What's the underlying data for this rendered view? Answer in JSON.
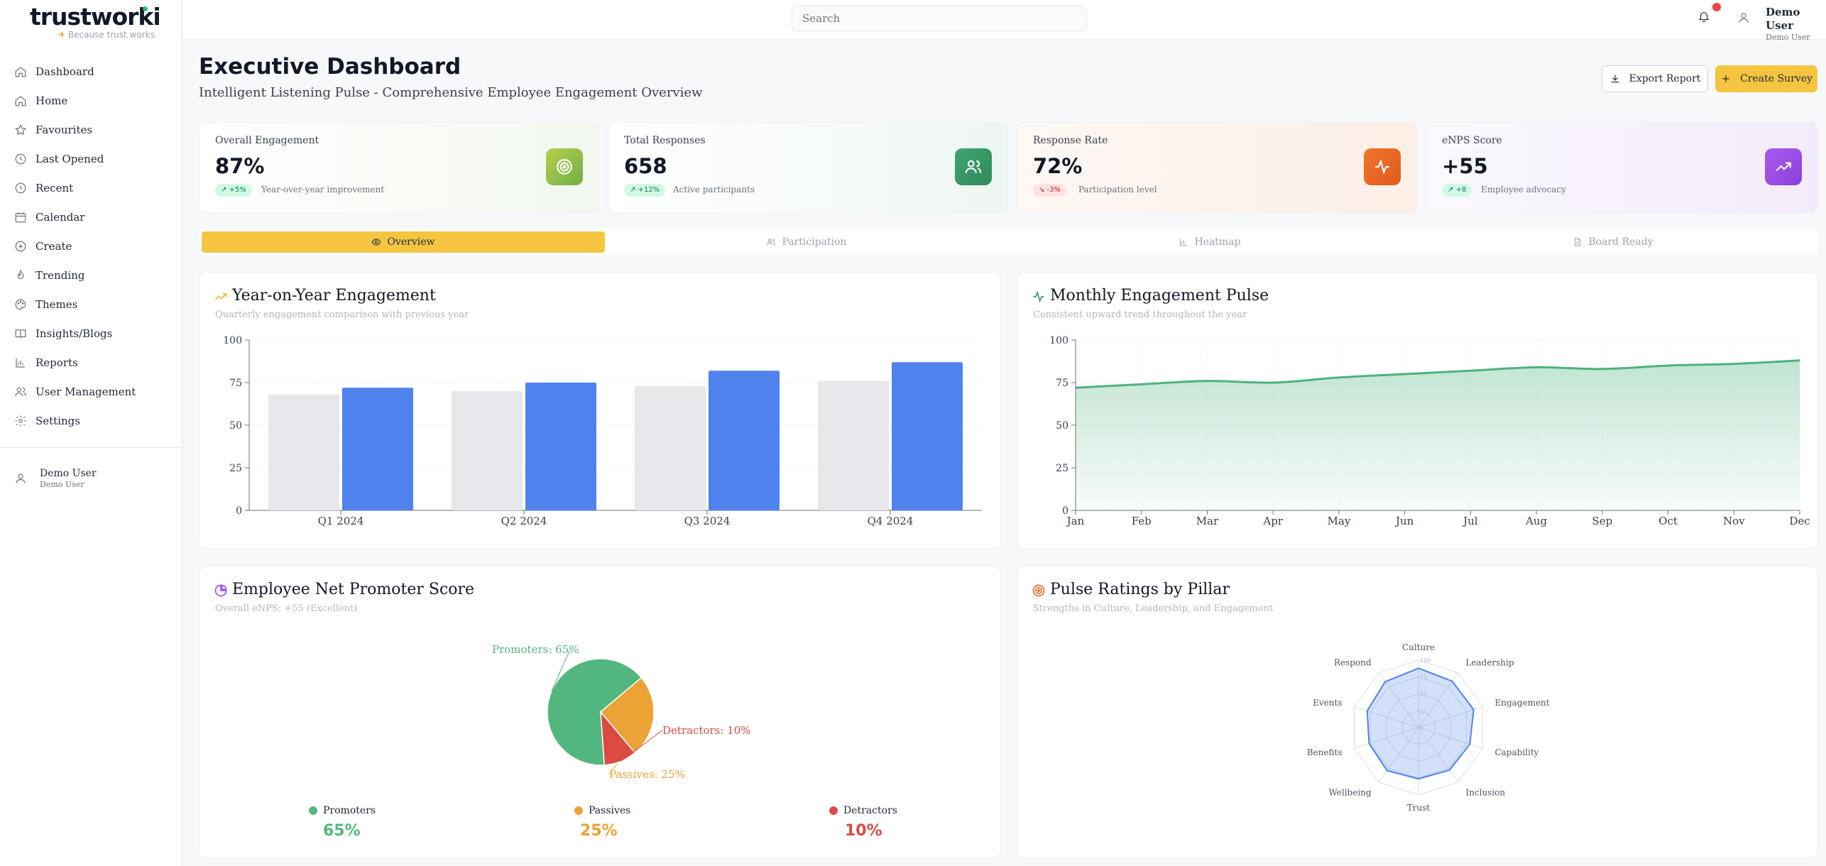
{
  "brand": {
    "name": "trustworki",
    "tagline": "Because trust works"
  },
  "sidebar": {
    "items": [
      {
        "label": "Dashboard",
        "icon": "home-icon"
      },
      {
        "label": "Home",
        "icon": "home-icon"
      },
      {
        "label": "Favourites",
        "icon": "star-icon"
      },
      {
        "label": "Last Opened",
        "icon": "clock-icon"
      },
      {
        "label": "Recent",
        "icon": "clock-icon"
      },
      {
        "label": "Calendar",
        "icon": "calendar-icon"
      },
      {
        "label": "Create",
        "icon": "plus-circle-icon"
      },
      {
        "label": "Trending",
        "icon": "flame-icon"
      },
      {
        "label": "Themes",
        "icon": "palette-icon"
      },
      {
        "label": "Insights/Blogs",
        "icon": "book-icon"
      },
      {
        "label": "Reports",
        "icon": "bar-chart-icon"
      },
      {
        "label": "User Management",
        "icon": "users-icon"
      },
      {
        "label": "Settings",
        "icon": "gear-icon"
      }
    ],
    "user": {
      "name": "Demo User",
      "role": "Demo User"
    }
  },
  "topbar": {
    "search_placeholder": "Search",
    "user": {
      "name": "Demo User",
      "role": "Demo User"
    }
  },
  "header": {
    "title": "Executive Dashboard",
    "subtitle": "Intelligent Listening Pulse - Comprehensive Employee Engagement Overview",
    "export_label": "Export Report",
    "create_label": "Create Survey"
  },
  "stats": [
    {
      "label": "Overall Engagement",
      "value": "87%",
      "badge": "+5%",
      "trend": "up",
      "note": "Year-over-year improvement",
      "icon": "target-icon",
      "color": "#8fbf3a"
    },
    {
      "label": "Total Responses",
      "value": "658",
      "badge": "+12%",
      "trend": "up",
      "note": "Active participants",
      "icon": "users-icon",
      "color": "#3e9b6b"
    },
    {
      "label": "Response Rate",
      "value": "72%",
      "badge": "-3%",
      "trend": "down",
      "note": "Participation level",
      "icon": "activity-icon",
      "color": "#ea6a25"
    },
    {
      "label": "eNPS Score",
      "value": "+55",
      "badge": "+8",
      "trend": "up",
      "note": "Employee advocacy",
      "icon": "trending-up-icon",
      "color": "#9a4fe0"
    }
  ],
  "tabs": [
    {
      "label": "Overview",
      "icon": "eye-icon"
    },
    {
      "label": "Participation",
      "icon": "users-icon"
    },
    {
      "label": "Heatmap",
      "icon": "bar-chart-icon"
    },
    {
      "label": "Board Ready",
      "icon": "document-icon"
    }
  ],
  "panels": {
    "yoy": {
      "title": "Year-on-Year Engagement",
      "subtitle": "Quarterly engagement comparison with previous year"
    },
    "monthly": {
      "title": "Monthly Engagement Pulse",
      "subtitle": "Consistent upward trend throughout the year"
    },
    "enps": {
      "title": "Employee Net Promoter Score",
      "subtitle": "Overall eNPS: +55 (Excellent)",
      "legend": [
        {
          "name": "Promoters",
          "value": "65%",
          "color": "#52b77f"
        },
        {
          "name": "Passives",
          "value": "25%",
          "color": "#eaa334"
        },
        {
          "name": "Detractors",
          "value": "10%",
          "color": "#dc4b41"
        }
      ]
    },
    "pillar": {
      "title": "Pulse Ratings by Pillar",
      "subtitle": "Strengths in Culture, Leadership, and Engagement"
    }
  },
  "chart_data": [
    {
      "type": "bar",
      "title": "Year-on-Year Engagement",
      "categories": [
        "Q1 2024",
        "Q2 2024",
        "Q3 2024",
        "Q4 2024"
      ],
      "series": [
        {
          "values": [
            68,
            70,
            73,
            76
          ],
          "color": "#e5e7eb"
        },
        {
          "values": [
            72,
            75,
            82,
            87
          ],
          "color": "#4f82ec"
        }
      ],
      "yticks": [
        "0",
        "25",
        "50",
        "75",
        "100"
      ],
      "ylim": [
        0,
        100
      ],
      "grid": true
    },
    {
      "type": "area",
      "title": "Monthly Engagement Pulse",
      "categories": [
        "Jan",
        "Feb",
        "Mar",
        "Apr",
        "May",
        "Jun",
        "Jul",
        "Aug",
        "Sep",
        "Oct",
        "Nov",
        "Dec"
      ],
      "values": [
        72,
        74,
        76,
        75,
        78,
        80,
        82,
        84,
        83,
        85,
        86,
        88
      ],
      "color": "#4db27f",
      "yticks": [
        "0",
        "25",
        "50",
        "75",
        "100"
      ],
      "ylim": [
        0,
        100
      ],
      "grid": true
    },
    {
      "type": "pie",
      "title": "Employee Net Promoter Score",
      "labels": [
        "Promoters: 65%",
        "Passives: 25%",
        "Detractors: 10%"
      ],
      "values": [
        65,
        25,
        10
      ],
      "colors": [
        "#52b77f",
        "#eaa334",
        "#dc4b41"
      ]
    },
    {
      "type": "radar",
      "title": "Pulse Ratings by Pillar",
      "axes": [
        "Culture",
        "Leadership",
        "Engagement",
        "Capability",
        "Inclusion",
        "Trust",
        "Wellbeing",
        "Benefits",
        "Events",
        "Respond"
      ],
      "values": [
        88,
        85,
        86,
        80,
        78,
        76,
        79,
        77,
        80,
        84
      ],
      "rings": [
        "100",
        "75",
        "50",
        "25",
        "0"
      ],
      "rmax": 100,
      "color": "#4f82ec"
    }
  ]
}
